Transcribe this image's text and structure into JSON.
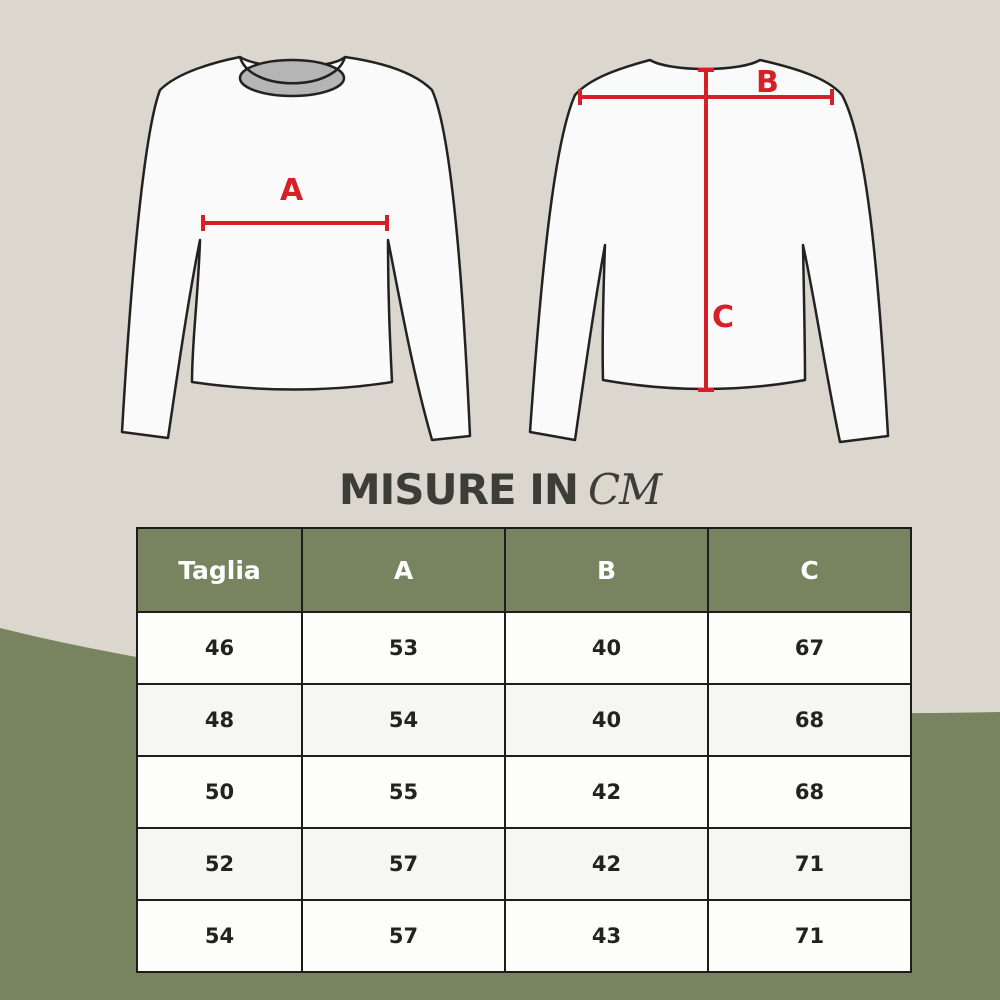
{
  "colors": {
    "background": "#dcd7ce",
    "green": "#78845f",
    "measure_red": "#d62027",
    "text": "#3d3d38"
  },
  "diagram": {
    "labels": {
      "a": "A",
      "b": "B",
      "c": "C"
    }
  },
  "title": {
    "text": "MISURE IN",
    "unit": "CM"
  },
  "table": {
    "headers": [
      "Taglia",
      "A",
      "B",
      "C"
    ],
    "rows": [
      [
        "46",
        "53",
        "40",
        "67"
      ],
      [
        "48",
        "54",
        "40",
        "68"
      ],
      [
        "50",
        "55",
        "42",
        "68"
      ],
      [
        "52",
        "57",
        "42",
        "71"
      ],
      [
        "54",
        "57",
        "43",
        "71"
      ]
    ]
  }
}
